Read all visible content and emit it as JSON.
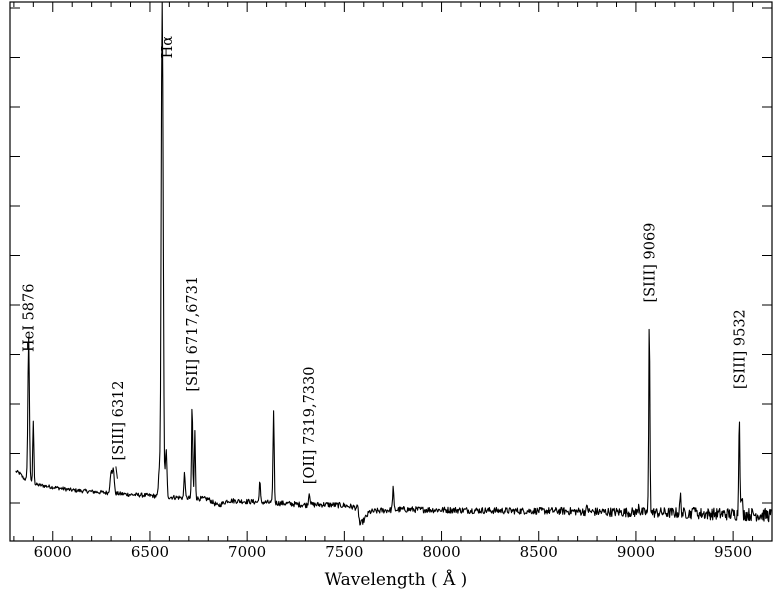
{
  "chart_data": {
    "type": "line",
    "title": "",
    "xlabel": "Wavelength  ( Å )",
    "ylabel": "",
    "xlim": [
      5780,
      9700
    ],
    "ylim": [
      0,
      100
    ],
    "grid": false,
    "x_ticks": [
      6000,
      6500,
      7000,
      7500,
      8000,
      8500,
      9000,
      9500
    ],
    "x_tick_labels": [
      "6000",
      "6500",
      "7000",
      "7500",
      "8000",
      "8500",
      "9000",
      "9500"
    ],
    "y_ticks": [
      10,
      20,
      30,
      40,
      50,
      60,
      70,
      80,
      90,
      100
    ],
    "series": [
      {
        "color": "#000000",
        "continuum": [
          [
            5810,
            6.4
          ],
          [
            5830,
            6.0
          ],
          [
            5850,
            5.0
          ],
          [
            5900,
            3.8
          ],
          [
            5950,
            3.5
          ],
          [
            6000,
            3.2
          ],
          [
            6100,
            2.6
          ],
          [
            6200,
            2.3
          ],
          [
            6300,
            2.0
          ],
          [
            6400,
            1.7
          ],
          [
            6500,
            1.5
          ],
          [
            6600,
            1.2
          ],
          [
            6700,
            1.0
          ],
          [
            6800,
            0.8
          ],
          [
            6850,
            -0.6
          ],
          [
            6900,
            0.5
          ],
          [
            7000,
            0.3
          ],
          [
            7100,
            0.1
          ],
          [
            7200,
            -0.1
          ],
          [
            7300,
            -0.4
          ],
          [
            7400,
            -0.3
          ],
          [
            7500,
            -0.5
          ],
          [
            7570,
            -1.0
          ],
          [
            7580,
            -4.4
          ],
          [
            7600,
            -3.5
          ],
          [
            7630,
            -1.8
          ],
          [
            7700,
            -1.5
          ],
          [
            7800,
            -1.3
          ],
          [
            8000,
            -1.4
          ],
          [
            8200,
            -1.5
          ],
          [
            8400,
            -1.6
          ],
          [
            8600,
            -1.6
          ],
          [
            8800,
            -1.8
          ],
          [
            9000,
            -1.9
          ],
          [
            9200,
            -2.0
          ],
          [
            9400,
            -2.2
          ],
          [
            9600,
            -2.3
          ],
          [
            9700,
            -2.5
          ]
        ],
        "emission_lines": [
          {
            "x": 5876,
            "peak": 29,
            "width": 4
          },
          {
            "x": 5900,
            "peak": 12.5,
            "width": 3
          },
          {
            "x": 6300,
            "peak": 4.5,
            "width": 5
          },
          {
            "x": 6312,
            "peak": 5.0,
            "width": 4
          },
          {
            "x": 6548,
            "peak": 5,
            "width": 4
          },
          {
            "x": 6563,
            "peak": 100,
            "width": 5
          },
          {
            "x": 6583,
            "peak": 9.5,
            "width": 4
          },
          {
            "x": 6678,
            "peak": 5.5,
            "width": 3
          },
          {
            "x": 6717,
            "peak": 19,
            "width": 3
          },
          {
            "x": 6731,
            "peak": 13.5,
            "width": 3
          },
          {
            "x": 7065,
            "peak": 4.2,
            "width": 3
          },
          {
            "x": 7136,
            "peak": 18.5,
            "width": 3
          },
          {
            "x": 7320,
            "peak": 2.5,
            "width": 4
          },
          {
            "x": 7751,
            "peak": 4.6,
            "width": 3
          },
          {
            "x": 8750,
            "peak": 1.2,
            "width": 3
          },
          {
            "x": 9015,
            "peak": 1.8,
            "width": 3
          },
          {
            "x": 9069,
            "peak": 38.5,
            "width": 3
          },
          {
            "x": 9229,
            "peak": 3.5,
            "width": 3
          },
          {
            "x": 9300,
            "peak": 2.2,
            "width": 3
          },
          {
            "x": 9532,
            "peak": 21,
            "width": 3
          },
          {
            "x": 9545,
            "peak": 3.5,
            "width": 3
          }
        ],
        "noise_amplitude": [
          [
            5780,
            0.35
          ],
          [
            7600,
            0.6
          ],
          [
            8500,
            0.7
          ],
          [
            9000,
            1.0
          ],
          [
            9700,
            1.4
          ]
        ]
      }
    ],
    "annotations": [
      {
        "text": "Hα",
        "x": 6563,
        "y": 98
      },
      {
        "text": "HeI 5876",
        "x": 5876,
        "y": 30.5
      },
      {
        "text": "[SIII] 6312",
        "x": 6335,
        "y": 8.6,
        "leader_to": [
          6312,
          4.5
        ]
      },
      {
        "text": "[SII] 6717,6731",
        "x": 6717,
        "y": 22.5
      },
      {
        "text": "[OII] 7319,7330",
        "x": 7319,
        "y": 3.8
      },
      {
        "text": "[SIII] 9069",
        "x": 9069,
        "y": 40.5
      },
      {
        "text": "[SIII] 9532",
        "x": 9532,
        "y": 23
      }
    ]
  }
}
